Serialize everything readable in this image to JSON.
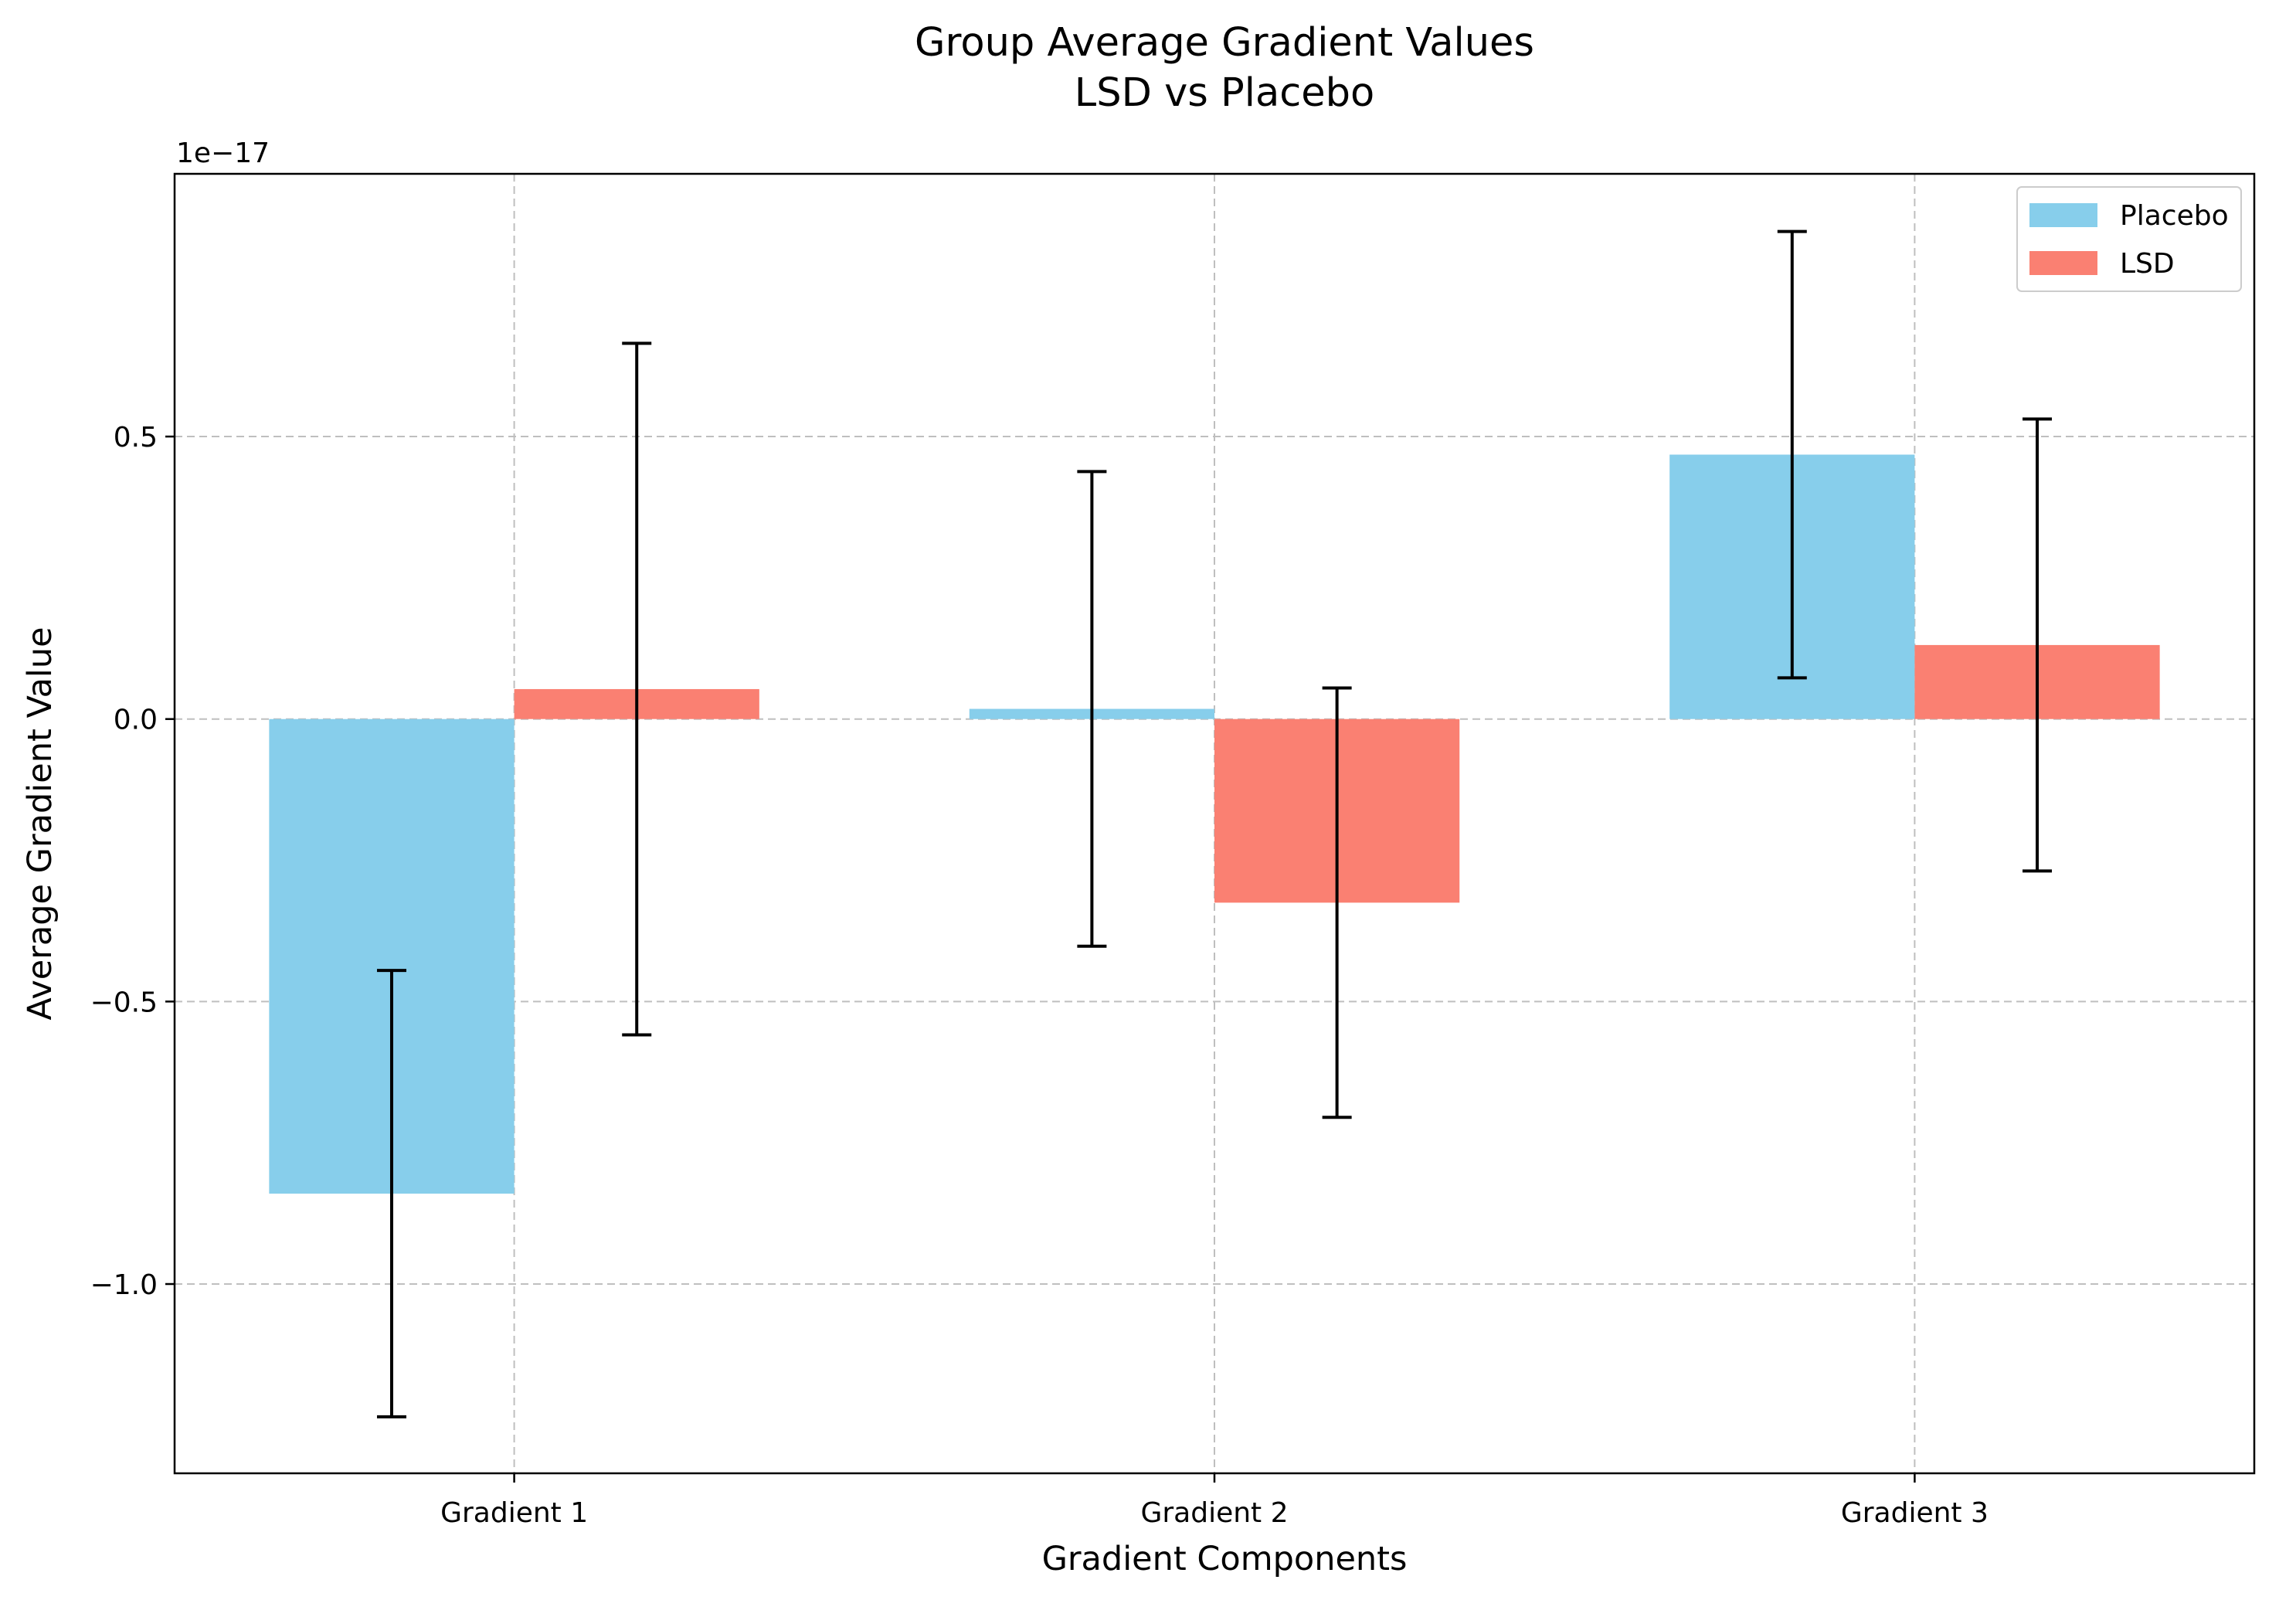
{
  "chart_data": {
    "type": "bar",
    "title": "Group Average Gradient Values",
    "subtitle": "LSD vs Placebo",
    "xlabel": "Gradient Components",
    "ylabel": "Average Gradient Value",
    "y_offset_text": "1e−17",
    "categories": [
      "Gradient 1",
      "Gradient 2",
      "Gradient 3"
    ],
    "series": [
      {
        "name": "Placebo",
        "color": "#87CEEB",
        "values": [
          -0.84,
          0.018,
          0.468
        ],
        "errors": [
          0.395,
          0.42,
          0.395
        ]
      },
      {
        "name": "LSD",
        "color": "#FA8072",
        "values": [
          0.053,
          -0.325,
          0.131
        ],
        "errors": [
          0.612,
          0.38,
          0.4
        ]
      }
    ],
    "ylim": [
      -1.335,
      0.965
    ],
    "yticks": [
      -1.0,
      -0.5,
      0.0,
      0.5
    ],
    "ytick_labels": [
      "−1.0",
      "−0.5",
      "0.0",
      "0.5"
    ],
    "grid": true,
    "legend_position": "top-right"
  }
}
